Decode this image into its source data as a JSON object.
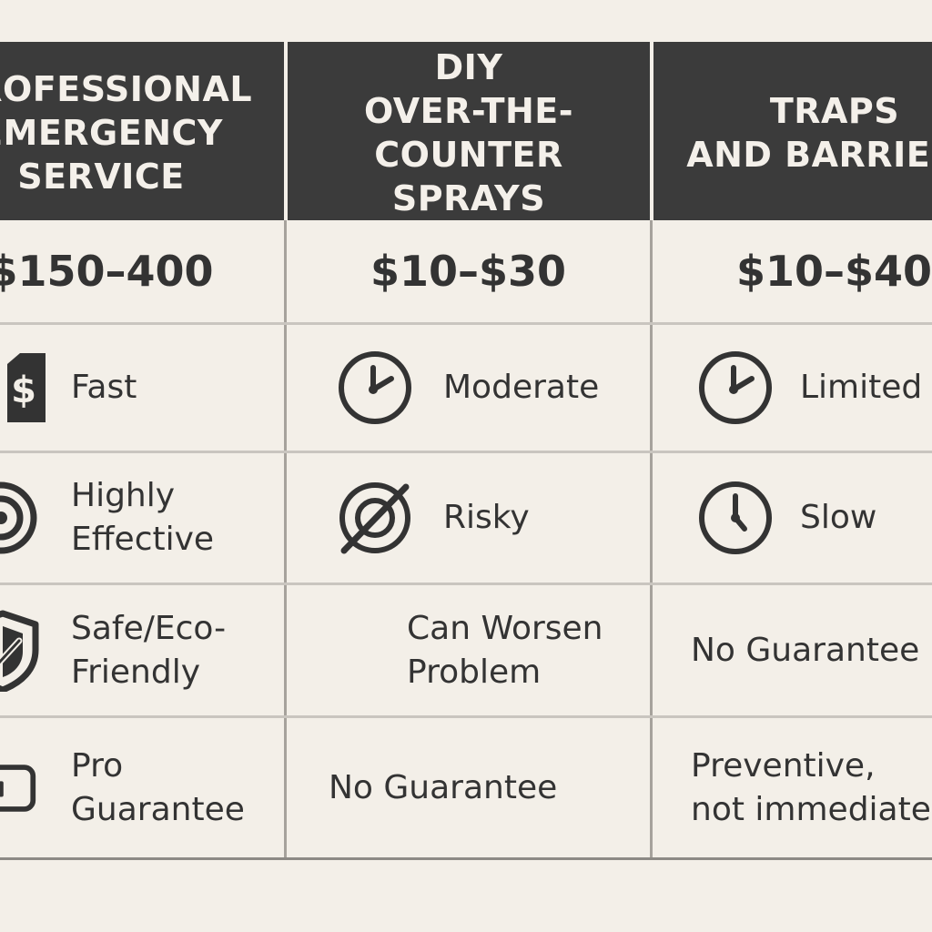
{
  "columns": [
    {
      "header": "PROFESSIONAL\nEMERGENCY\nSERVICE",
      "price": "$150–400",
      "rows": [
        {
          "icon": "price-tag-icon",
          "text": "Fast"
        },
        {
          "icon": "target-icon",
          "text": "Highly\nEffective"
        },
        {
          "icon": "shield-check-icon",
          "text": "Safe/Eco-\nFriendly"
        },
        {
          "icon": "badge-icon",
          "text": "Pro\nGuarantee"
        }
      ]
    },
    {
      "header": "DIY\nOVER-THE-COUNTER\nSPRAYS",
      "price": "$10–$30",
      "rows": [
        {
          "icon": "clock-icon",
          "text": "Moderate"
        },
        {
          "icon": "no-target-icon",
          "text": "Risky"
        },
        {
          "icon": "",
          "text": "Can Worsen\nProblem"
        },
        {
          "icon": "",
          "text": "No Guarantee"
        }
      ]
    },
    {
      "header": "TRAPS\nAND BARRIERS",
      "price": "$10–$40",
      "rows": [
        {
          "icon": "clock-icon",
          "text": "Limited"
        },
        {
          "icon": "clock-icon",
          "text": "Slow"
        },
        {
          "icon": "",
          "text": "No Guarantee"
        },
        {
          "icon": "",
          "text": "Preventive,\nnot immediate"
        }
      ]
    }
  ]
}
